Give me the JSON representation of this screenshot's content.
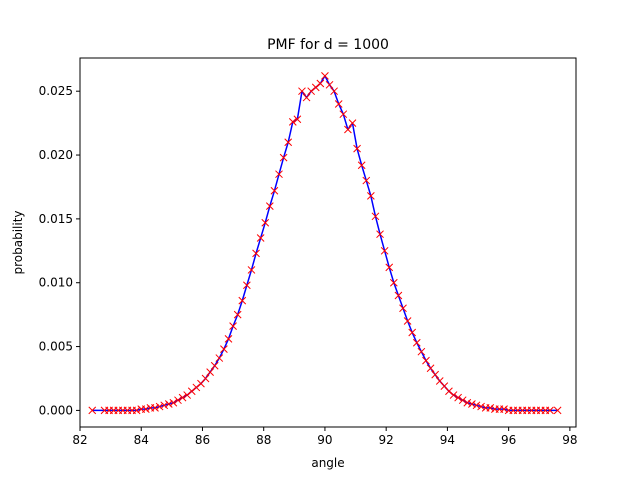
{
  "chart_data": {
    "type": "line",
    "title": "PMF for d = 1000",
    "xlabel": "angle",
    "ylabel": "probability",
    "xlim": [
      82.0,
      98.2
    ],
    "ylim": [
      -0.0013,
      0.0276
    ],
    "xticks": [
      82,
      84,
      86,
      88,
      90,
      92,
      94,
      96,
      98
    ],
    "yticks": [
      0.0,
      0.005,
      0.01,
      0.015,
      0.02,
      0.025
    ],
    "ytick_labels": [
      "0.000",
      "0.005",
      "0.010",
      "0.015",
      "0.020",
      "0.025"
    ],
    "grid": false,
    "line_color": "#0000ff",
    "marker_color": "#ff0000",
    "marker": "x",
    "x": [
      82.4,
      82.8,
      82.95,
      83.1,
      83.25,
      83.4,
      83.55,
      83.7,
      83.85,
      84.0,
      84.15,
      84.3,
      84.45,
      84.6,
      84.75,
      84.9,
      85.05,
      85.2,
      85.35,
      85.5,
      85.65,
      85.8,
      85.95,
      86.1,
      86.25,
      86.4,
      86.55,
      86.7,
      86.85,
      87.0,
      87.15,
      87.3,
      87.45,
      87.6,
      87.75,
      87.9,
      88.05,
      88.2,
      88.35,
      88.5,
      88.65,
      88.8,
      88.95,
      89.1,
      89.25,
      89.4,
      89.55,
      89.7,
      89.85,
      90.0,
      90.15,
      90.3,
      90.45,
      90.6,
      90.75,
      90.9,
      91.05,
      91.2,
      91.35,
      91.5,
      91.65,
      91.8,
      91.95,
      92.1,
      92.25,
      92.4,
      92.55,
      92.7,
      92.85,
      93.0,
      93.15,
      93.3,
      93.45,
      93.6,
      93.75,
      93.9,
      94.05,
      94.2,
      94.35,
      94.5,
      94.65,
      94.8,
      94.95,
      95.1,
      95.25,
      95.4,
      95.55,
      95.7,
      95.85,
      96.0,
      96.15,
      96.3,
      96.45,
      96.6,
      96.75,
      96.9,
      97.05,
      97.2,
      97.35,
      97.6
    ],
    "y": [
      0.0,
      0.0,
      0.0,
      0.0,
      0.0,
      0.0,
      0.0,
      0.0,
      0.0,
      0.0001,
      0.0001,
      0.0002,
      0.0002,
      0.0003,
      0.0004,
      0.0005,
      0.0006,
      0.0008,
      0.001,
      0.0012,
      0.0015,
      0.0018,
      0.0021,
      0.0025,
      0.003,
      0.0035,
      0.0041,
      0.0048,
      0.0056,
      0.0066,
      0.0075,
      0.0086,
      0.0098,
      0.011,
      0.0123,
      0.0135,
      0.0147,
      0.016,
      0.0172,
      0.0185,
      0.0198,
      0.021,
      0.0226,
      0.0228,
      0.025,
      0.0245,
      0.025,
      0.0253,
      0.0256,
      0.0262,
      0.0255,
      0.025,
      0.024,
      0.0232,
      0.022,
      0.0225,
      0.0205,
      0.0192,
      0.018,
      0.0168,
      0.0152,
      0.0138,
      0.0125,
      0.0112,
      0.01,
      0.009,
      0.008,
      0.007,
      0.0061,
      0.0053,
      0.0046,
      0.0039,
      0.0033,
      0.0028,
      0.0023,
      0.0019,
      0.0015,
      0.0012,
      0.001,
      0.0008,
      0.0006,
      0.0005,
      0.0004,
      0.0003,
      0.0002,
      0.0002,
      0.0001,
      0.0001,
      0.0001,
      0.0,
      0.0,
      0.0,
      0.0,
      0.0,
      0.0,
      0.0,
      0.0,
      0.0,
      0.0,
      0.0
    ]
  }
}
